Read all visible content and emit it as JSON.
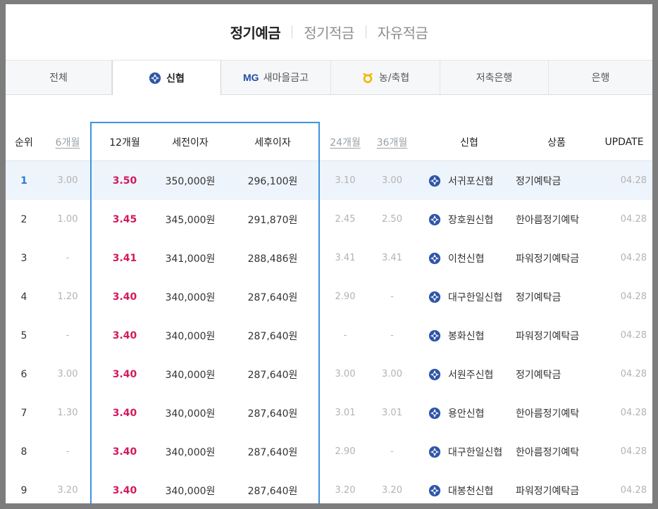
{
  "top_nav": [
    {
      "label": "정기예금",
      "active": true
    },
    {
      "label": "정기적금",
      "active": false
    },
    {
      "label": "자유적금",
      "active": false
    }
  ],
  "tabs": [
    {
      "label": "전체",
      "logo": "",
      "active": false
    },
    {
      "label": "신협",
      "logo": "shinhyup-icon",
      "active": true
    },
    {
      "label": "새마을금고",
      "logo": "mg-icon",
      "logo_text": "MG",
      "active": false
    },
    {
      "label": "농/축협",
      "logo": "nonghyup-icon",
      "active": false
    },
    {
      "label": "저축은행",
      "logo": "",
      "active": false
    },
    {
      "label": "은행",
      "logo": "",
      "active": false
    }
  ],
  "table": {
    "headers": {
      "rank": "순위",
      "m6": "6개월",
      "m12": "12개월",
      "pretax": "세전이자",
      "posttax": "세후이자",
      "m24": "24개월",
      "m36": "36개월",
      "bank": "신협",
      "product": "상품",
      "update": "UPDATE"
    },
    "rows": [
      {
        "rank": "1",
        "m6": "3.00",
        "m12": "3.50",
        "pretax": "350,000원",
        "posttax": "296,100원",
        "m24": "3.10",
        "m36": "3.00",
        "bank": "서귀포신협",
        "product": "정기예탁금",
        "update": "04.28"
      },
      {
        "rank": "2",
        "m6": "1.00",
        "m12": "3.45",
        "pretax": "345,000원",
        "posttax": "291,870원",
        "m24": "2.45",
        "m36": "2.50",
        "bank": "장호원신협",
        "product": "한아름정기예탁",
        "update": "04.28"
      },
      {
        "rank": "3",
        "m6": "-",
        "m12": "3.41",
        "pretax": "341,000원",
        "posttax": "288,486원",
        "m24": "3.41",
        "m36": "3.41",
        "bank": "이천신협",
        "product": "파워정기예탁금",
        "update": "04.28"
      },
      {
        "rank": "4",
        "m6": "1.20",
        "m12": "3.40",
        "pretax": "340,000원",
        "posttax": "287,640원",
        "m24": "2.90",
        "m36": "-",
        "bank": "대구한일신협",
        "product": "정기예탁금",
        "update": "04.28"
      },
      {
        "rank": "5",
        "m6": "-",
        "m12": "3.40",
        "pretax": "340,000원",
        "posttax": "287,640원",
        "m24": "-",
        "m36": "-",
        "bank": "봉화신협",
        "product": "파워정기예탁금",
        "update": "04.28"
      },
      {
        "rank": "6",
        "m6": "3.00",
        "m12": "3.40",
        "pretax": "340,000원",
        "posttax": "287,640원",
        "m24": "3.00",
        "m36": "3.00",
        "bank": "서원주신협",
        "product": "정기예탁금",
        "update": "04.28"
      },
      {
        "rank": "7",
        "m6": "1.30",
        "m12": "3.40",
        "pretax": "340,000원",
        "posttax": "287,640원",
        "m24": "3.01",
        "m36": "3.01",
        "bank": "용안신협",
        "product": "한아름정기예탁",
        "update": "04.28"
      },
      {
        "rank": "8",
        "m6": "-",
        "m12": "3.40",
        "pretax": "340,000원",
        "posttax": "287,640원",
        "m24": "2.90",
        "m36": "-",
        "bank": "대구한일신협",
        "product": "한아름정기예탁",
        "update": "04.28"
      },
      {
        "rank": "9",
        "m6": "3.20",
        "m12": "3.40",
        "pretax": "340,000원",
        "posttax": "287,640원",
        "m24": "3.20",
        "m36": "3.20",
        "bank": "대봉천신협",
        "product": "파워정기예탁금",
        "update": "04.28"
      }
    ]
  },
  "colors": {
    "accent_blue": "#3e93e0",
    "rate_red": "#d3195e",
    "highlight_row": "#eef4fb",
    "shinhyup_logo": "#2f56a8",
    "nonghyup_logo": "#f2b705"
  }
}
